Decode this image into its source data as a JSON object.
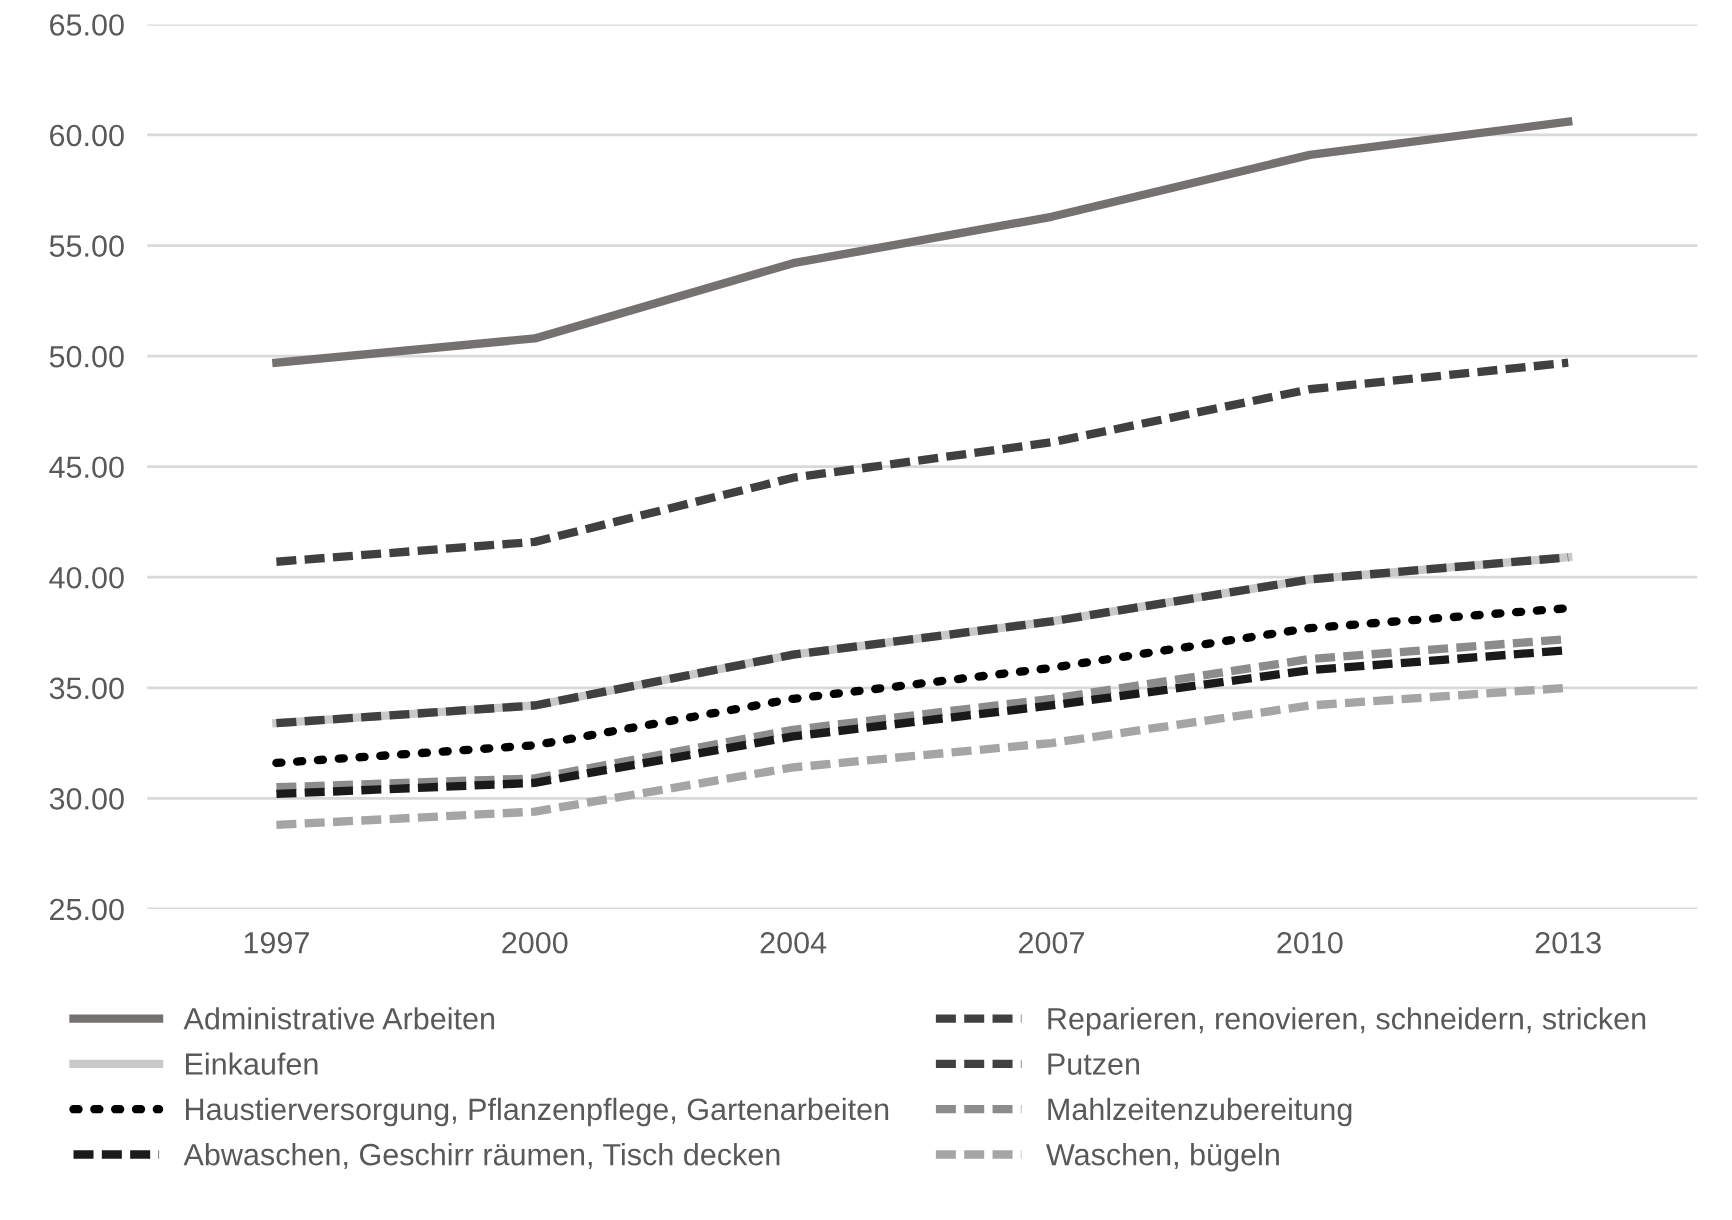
{
  "chart_data": {
    "type": "line",
    "categories": [
      "1997",
      "2000",
      "2004",
      "2007",
      "2010",
      "2013"
    ],
    "series": [
      {
        "name": "Administrative Arbeiten",
        "color": "#767171",
        "line_style": "solid",
        "values": [
          49.7,
          50.8,
          54.2,
          56.3,
          59.1,
          60.6
        ]
      },
      {
        "name": "Reparieren, renovieren, schneidern, stricken",
        "color": "#404040",
        "line_style": "dashed",
        "values": [
          40.7,
          41.6,
          44.5,
          46.1,
          48.5,
          49.7
        ]
      },
      {
        "name": "Einkaufen",
        "color": "#c9c9c9",
        "line_style": "solid",
        "values": [
          33.4,
          34.2,
          36.5,
          38.0,
          39.9,
          40.9
        ]
      },
      {
        "name": "Putzen",
        "color": "#404040",
        "line_style": "dashed",
        "values": [
          33.4,
          34.2,
          36.5,
          38.0,
          39.9,
          40.9
        ]
      },
      {
        "name": "Haustierversorgung, Pflanzenpflege, Gartenarbeiten",
        "color": "#000000",
        "line_style": "dotted",
        "values": [
          31.6,
          32.4,
          34.5,
          35.9,
          37.7,
          38.6
        ]
      },
      {
        "name": "Mahlzeitenzubereitung",
        "color": "#8c8c8c",
        "line_style": "dashed",
        "values": [
          30.5,
          30.9,
          33.1,
          34.5,
          36.3,
          37.2
        ]
      },
      {
        "name": "Abwaschen, Geschirr räumen, Tisch decken",
        "color": "#1a1a1a",
        "line_style": "dashed",
        "values": [
          30.2,
          30.7,
          32.8,
          34.2,
          35.8,
          36.7
        ]
      },
      {
        "name": "Waschen, bügeln",
        "color": "#a5a5a5",
        "line_style": "dashed",
        "values": [
          28.8,
          29.4,
          31.4,
          32.5,
          34.2,
          35.0
        ]
      }
    ],
    "ylim": [
      25,
      65
    ],
    "yticks": [
      {
        "value": 25,
        "label": "25.00"
      },
      {
        "value": 30,
        "label": "30.00"
      },
      {
        "value": 35,
        "label": "35.00"
      },
      {
        "value": 40,
        "label": "40.00"
      },
      {
        "value": 45,
        "label": "45.00"
      },
      {
        "value": 50,
        "label": "50.00"
      },
      {
        "value": 55,
        "label": "55.00"
      },
      {
        "value": 60,
        "label": "60.00"
      },
      {
        "value": 65,
        "label": "65.00"
      }
    ],
    "grid": "y",
    "legend": "bottom",
    "marker": "none"
  }
}
